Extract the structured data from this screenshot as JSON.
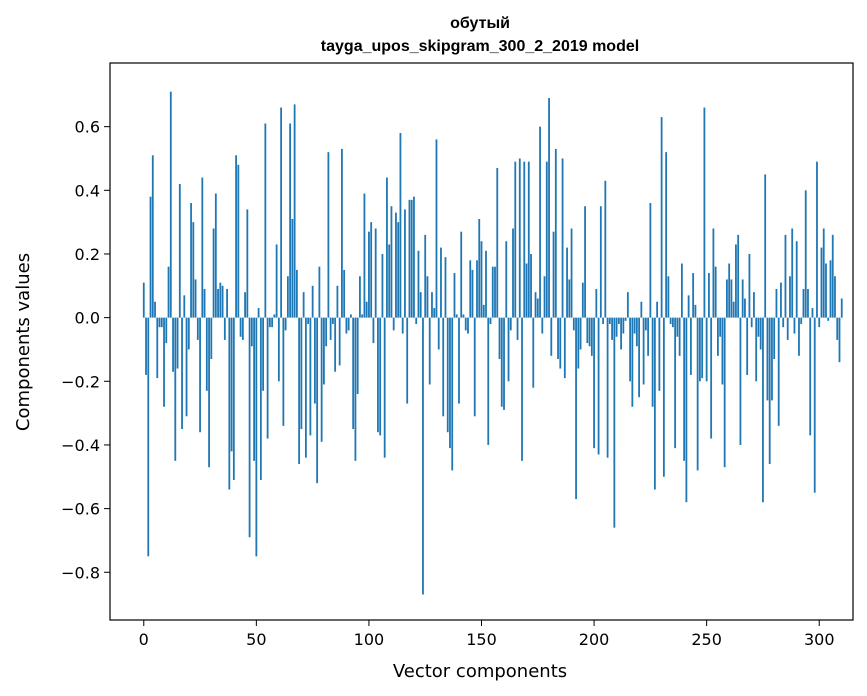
{
  "chart_data": {
    "type": "bar",
    "title_line1": "обутый",
    "title_line2": "tayga_upos_skipgram_300_2_2019 model",
    "xlabel": "Vector components",
    "ylabel": "Components values",
    "xlim": [
      -15,
      315
    ],
    "ylim": [
      -0.95,
      0.8
    ],
    "xticks": [
      0,
      50,
      100,
      150,
      200,
      250,
      300
    ],
    "yticks": [
      -0.8,
      -0.6,
      -0.4,
      -0.2,
      0.0,
      0.2,
      0.4,
      0.6
    ],
    "xtick_labels": [
      "0",
      "50",
      "100",
      "150",
      "200",
      "250",
      "300"
    ],
    "ytick_labels": [
      "−0.8",
      "−0.6",
      "−0.4",
      "−0.2",
      "0.0",
      "0.2",
      "0.4",
      "0.6"
    ],
    "grid": false,
    "bar_color": "#1f77b4",
    "values": [
      0.11,
      -0.18,
      -0.75,
      0.38,
      0.51,
      0.05,
      -0.19,
      -0.03,
      -0.03,
      -0.28,
      -0.08,
      0.16,
      0.71,
      -0.17,
      -0.45,
      -0.16,
      0.42,
      -0.35,
      0.07,
      -0.31,
      -0.1,
      0.36,
      0.3,
      0.12,
      -0.07,
      -0.36,
      0.44,
      0.09,
      -0.23,
      -0.47,
      -0.13,
      0.28,
      0.39,
      0.09,
      0.11,
      0.1,
      -0.07,
      0.09,
      -0.54,
      -0.42,
      -0.51,
      0.51,
      0.48,
      -0.06,
      -0.07,
      0.08,
      0.34,
      -0.69,
      -0.09,
      -0.45,
      -0.75,
      0.03,
      -0.51,
      -0.23,
      0.61,
      -0.38,
      -0.03,
      -0.03,
      0.01,
      0.23,
      -0.2,
      0.66,
      -0.34,
      -0.04,
      0.13,
      0.61,
      0.31,
      0.67,
      0.15,
      -0.46,
      -0.35,
      0.08,
      -0.44,
      -0.02,
      -0.37,
      0.1,
      -0.27,
      -0.52,
      0.16,
      -0.39,
      -0.21,
      -0.09,
      0.52,
      -0.07,
      -0.02,
      -0.17,
      0.1,
      -0.15,
      0.53,
      0.15,
      -0.05,
      -0.04,
      0.01,
      -0.35,
      -0.45,
      -0.24,
      0.13,
      0.01,
      0.39,
      0.05,
      0.27,
      0.3,
      -0.08,
      0.28,
      -0.36,
      -0.37,
      0.2,
      -0.44,
      0.44,
      0.23,
      0.35,
      -0.04,
      0.33,
      0.3,
      0.58,
      -0.05,
      0.34,
      -0.27,
      0.37,
      0.37,
      0.38,
      -0.02,
      0.21,
      0.08,
      -0.87,
      0.26,
      0.13,
      -0.21,
      0.08,
      0.03,
      0.56,
      -0.1,
      0.22,
      -0.31,
      0.19,
      -0.36,
      -0.41,
      -0.48,
      0.14,
      0.01,
      -0.27,
      0.27,
      0.01,
      -0.04,
      -0.05,
      0.18,
      0.15,
      -0.31,
      0.18,
      0.31,
      0.24,
      0.04,
      0.21,
      -0.4,
      -0.02,
      0.16,
      0.16,
      0.47,
      -0.13,
      -0.28,
      -0.29,
      0.24,
      -0.2,
      -0.04,
      0.28,
      0.49,
      -0.07,
      0.5,
      -0.45,
      0.49,
      0.17,
      0.49,
      0.2,
      -0.22,
      0.08,
      0.06,
      0.6,
      -0.05,
      0.13,
      0.49,
      0.69,
      -0.12,
      0.27,
      0.53,
      -0.13,
      -0.16,
      0.5,
      -0.19,
      0.22,
      0.12,
      0.28,
      -0.04,
      -0.57,
      -0.16,
      -0.1,
      0.11,
      0.35,
      -0.08,
      -0.09,
      -0.12,
      -0.41,
      0.09,
      -0.43,
      0.35,
      -0.02,
      0.43,
      -0.44,
      -0.02,
      -0.07,
      -0.66,
      -0.06,
      -0.02,
      -0.1,
      -0.05,
      -0.01,
      0.08,
      -0.2,
      -0.28,
      -0.05,
      -0.09,
      -0.25,
      0.05,
      -0.21,
      -0.04,
      -0.12,
      0.36,
      -0.28,
      -0.54,
      0.05,
      -0.23,
      0.63,
      -0.5,
      0.52,
      0.13,
      -0.02,
      -0.03,
      -0.41,
      -0.06,
      -0.12,
      0.17,
      -0.45,
      -0.58,
      0.07,
      -0.18,
      0.14,
      0.04,
      -0.48,
      -0.2,
      -0.19,
      0.66,
      -0.2,
      0.14,
      -0.38,
      0.28,
      0.16,
      -0.12,
      -0.06,
      -0.21,
      -0.47,
      0.12,
      0.17,
      0.12,
      0.05,
      0.23,
      0.26,
      -0.4,
      0.12,
      0.06,
      -0.18,
      0.2,
      -0.03,
      0.08,
      -0.2,
      -0.06,
      -0.1,
      -0.58,
      0.45,
      -0.26,
      -0.46,
      -0.26,
      -0.13,
      0.09,
      -0.34,
      0.11,
      -0.03,
      0.26,
      -0.07,
      0.13,
      0.28,
      -0.05,
      0.24,
      -0.12,
      -0.02,
      0.09,
      0.4,
      0.09,
      -0.37,
      0.03,
      -0.55,
      0.49,
      -0.03,
      0.22,
      0.28,
      0.17,
      -0.01,
      0.18,
      0.26,
      0.13,
      -0.07,
      -0.14,
      0.06
    ]
  }
}
